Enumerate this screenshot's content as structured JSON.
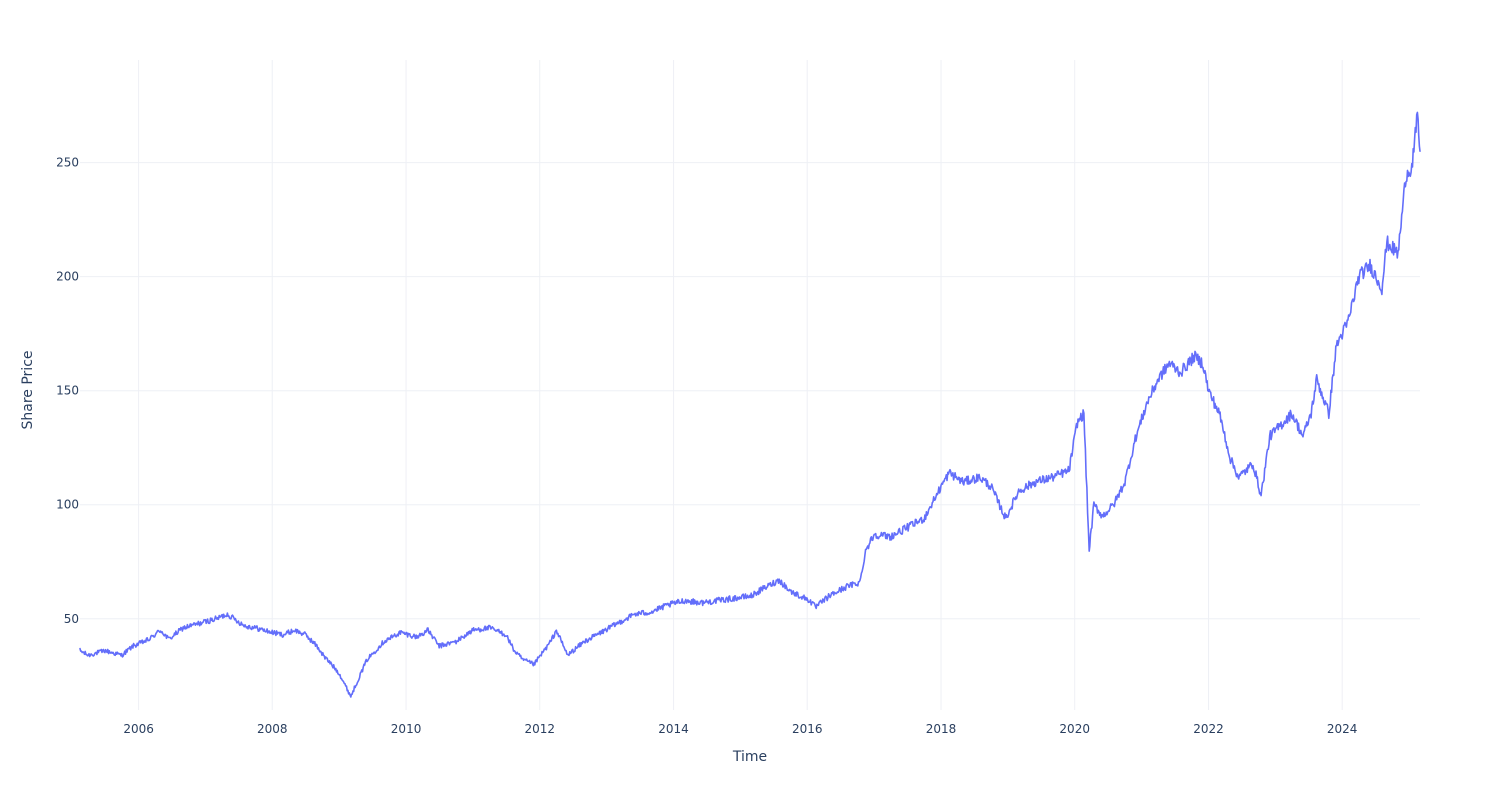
{
  "chart_data": {
    "type": "line",
    "title": "",
    "xlabel": "Time",
    "ylabel": "Share Price",
    "x_axis_type": "date",
    "xlim": [
      "2005-02-15",
      "2025-03-01"
    ],
    "ylim": [
      10,
      295
    ],
    "x_ticks": [
      "2006-01-01",
      "2008-01-01",
      "2010-01-01",
      "2012-01-01",
      "2014-01-01",
      "2016-01-01",
      "2018-01-01",
      "2020-01-01",
      "2022-01-01",
      "2024-01-01"
    ],
    "x_tick_labels": [
      "2006",
      "2008",
      "2010",
      "2012",
      "2014",
      "2016",
      "2018",
      "2020",
      "2022",
      "2024"
    ],
    "y_ticks": [
      50,
      100,
      150,
      200,
      250
    ],
    "y_tick_labels": [
      "50",
      "100",
      "150",
      "200",
      "250"
    ],
    "grid": true,
    "legend": "none",
    "colors": {
      "series": "#636efa",
      "grid": "#eef0f5",
      "text": "#2a3f5f",
      "background": "#ffffff"
    },
    "series": [
      {
        "x": [
          "2005-02-15",
          "2005-04-01",
          "2005-07-01",
          "2005-10-01",
          "2005-12-01",
          "2006-03-01",
          "2006-05-01",
          "2006-06-15",
          "2006-09-01",
          "2006-12-01",
          "2007-03-01",
          "2007-05-01",
          "2007-08-01",
          "2007-10-01",
          "2008-01-01",
          "2008-03-01",
          "2008-05-01",
          "2008-07-01",
          "2008-09-01",
          "2008-10-15",
          "2008-11-20",
          "2009-01-01",
          "2009-03-05",
          "2009-06-01",
          "2009-09-01",
          "2009-12-01",
          "2010-03-01",
          "2010-05-01",
          "2010-07-01",
          "2010-10-01",
          "2011-01-01",
          "2011-04-01",
          "2011-07-01",
          "2011-08-15",
          "2011-10-01",
          "2011-12-01",
          "2012-03-01",
          "2012-04-01",
          "2012-06-01",
          "2012-09-01",
          "2012-12-01",
          "2013-03-01",
          "2013-06-01",
          "2013-09-01",
          "2013-12-01",
          "2014-03-01",
          "2014-06-01",
          "2014-09-01",
          "2014-12-01",
          "2015-03-01",
          "2015-05-01",
          "2015-08-01",
          "2015-10-01",
          "2016-01-15",
          "2016-02-15",
          "2016-05-01",
          "2016-08-01",
          "2016-10-15",
          "2016-11-15",
          "2017-01-01",
          "2017-04-01",
          "2017-07-01",
          "2017-10-01",
          "2018-01-01",
          "2018-02-15",
          "2018-05-01",
          "2018-08-01",
          "2018-10-01",
          "2018-12-20",
          "2019-03-01",
          "2019-06-01",
          "2019-09-01",
          "2019-12-01",
          "2020-01-15",
          "2020-02-20",
          "2020-03-20",
          "2020-04-15",
          "2020-06-01",
          "2020-08-01",
          "2020-10-01",
          "2020-12-01",
          "2021-02-01",
          "2021-04-01",
          "2021-06-01",
          "2021-08-01",
          "2021-10-15",
          "2021-12-01",
          "2022-01-01",
          "2022-03-01",
          "2022-05-01",
          "2022-06-15",
          "2022-09-01",
          "2022-10-15",
          "2022-12-01",
          "2023-02-01",
          "2023-04-01",
          "2023-06-01",
          "2023-07-15",
          "2023-08-15",
          "2023-10-20",
          "2023-12-01",
          "2024-02-01",
          "2024-04-01",
          "2024-06-01",
          "2024-08-05",
          "2024-09-01",
          "2024-11-01",
          "2024-12-15",
          "2025-01-15",
          "2025-02-15",
          "2025-03-01"
        ],
        "y": [
          36,
          34,
          36,
          34,
          38,
          41,
          45,
          41,
          46,
          48,
          50,
          52,
          47,
          46,
          44,
          43,
          45,
          43,
          38,
          33,
          30,
          26,
          16,
          32,
          40,
          44,
          42,
          45,
          38,
          40,
          45,
          46,
          43,
          36,
          32,
          30,
          40,
          45,
          34,
          40,
          44,
          48,
          52,
          53,
          56,
          58,
          57,
          58,
          59,
          60,
          63,
          67,
          62,
          58,
          55,
          60,
          64,
          66,
          80,
          87,
          86,
          90,
          94,
          108,
          114,
          110,
          112,
          108,
          94,
          106,
          110,
          112,
          115,
          136,
          140,
          80,
          100,
          95,
          100,
          110,
          130,
          145,
          155,
          162,
          158,
          165,
          162,
          150,
          140,
          120,
          112,
          118,
          104,
          130,
          135,
          140,
          130,
          140,
          155,
          140,
          170,
          180,
          200,
          205,
          195,
          215,
          210,
          245,
          248,
          270,
          255
        ]
      }
    ]
  }
}
